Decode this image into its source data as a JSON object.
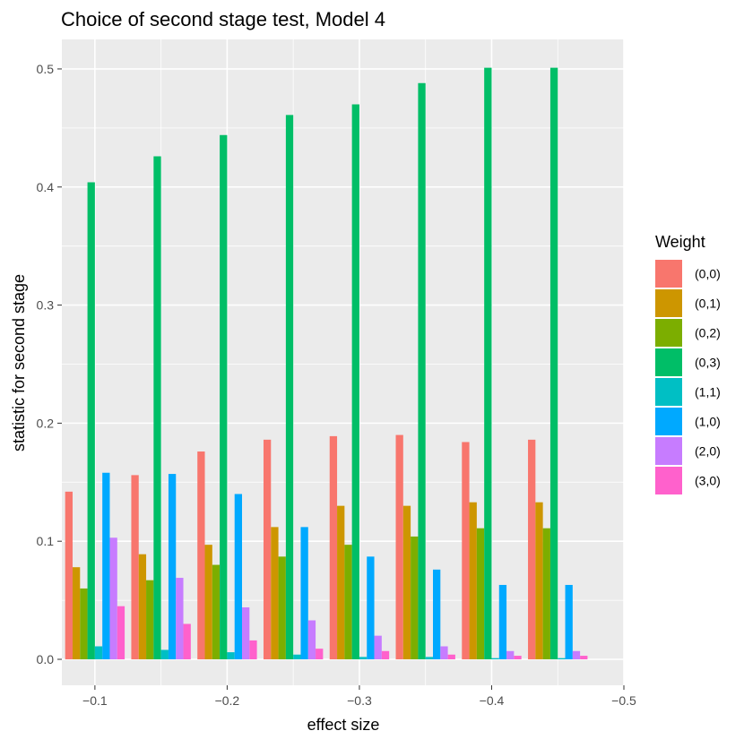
{
  "chart_data": {
    "type": "bar",
    "title": "Choice of second stage test, Model 4",
    "xlabel": "effect size",
    "ylabel": "statistic for second stage",
    "categories": [
      -0.1,
      -0.15,
      -0.2,
      -0.25,
      -0.3,
      -0.35,
      -0.4,
      -0.45
    ],
    "xlim": [
      -0.075,
      -0.5
    ],
    "x_ticks": [
      -0.1,
      -0.2,
      -0.3,
      -0.4,
      -0.5
    ],
    "x_tick_labels": [
      "−0.1",
      "−0.2",
      "−0.3",
      "−0.4",
      "−0.5"
    ],
    "ylim": [
      -0.022,
      0.525
    ],
    "y_ticks": [
      0.0,
      0.1,
      0.2,
      0.3,
      0.4,
      0.5
    ],
    "y_tick_labels": [
      "0.0",
      "0.1",
      "0.2",
      "0.3",
      "0.4",
      "0.5"
    ],
    "grid": true,
    "legend_position": "right",
    "legend_title": "Weight",
    "series": [
      {
        "name": "(0,0)",
        "color": "#F8766D",
        "values": [
          0.142,
          0.156,
          0.176,
          0.186,
          0.189,
          0.19,
          0.184,
          0.186
        ]
      },
      {
        "name": "(0,1)",
        "color": "#CD9600",
        "values": [
          0.078,
          0.089,
          0.097,
          0.112,
          0.13,
          0.13,
          0.133,
          0.133
        ]
      },
      {
        "name": "(0,2)",
        "color": "#7CAE00",
        "values": [
          0.06,
          0.067,
          0.08,
          0.087,
          0.097,
          0.104,
          0.111,
          0.111
        ]
      },
      {
        "name": "(0,3)",
        "color": "#00BE67",
        "values": [
          0.404,
          0.426,
          0.444,
          0.461,
          0.47,
          0.488,
          0.501,
          0.501
        ]
      },
      {
        "name": "(1,1)",
        "color": "#00BFC4",
        "values": [
          0.011,
          0.008,
          0.006,
          0.004,
          0.002,
          0.002,
          0.001,
          0.001
        ]
      },
      {
        "name": "(1,0)",
        "color": "#00A9FF",
        "values": [
          0.158,
          0.157,
          0.14,
          0.112,
          0.087,
          0.076,
          0.063,
          0.063
        ]
      },
      {
        "name": "(2,0)",
        "color": "#C77CFF",
        "values": [
          0.103,
          0.069,
          0.044,
          0.033,
          0.02,
          0.011,
          0.007,
          0.007
        ]
      },
      {
        "name": "(3,0)",
        "color": "#FF61CC",
        "values": [
          0.045,
          0.03,
          0.016,
          0.009,
          0.007,
          0.004,
          0.003,
          0.003
        ]
      }
    ]
  }
}
